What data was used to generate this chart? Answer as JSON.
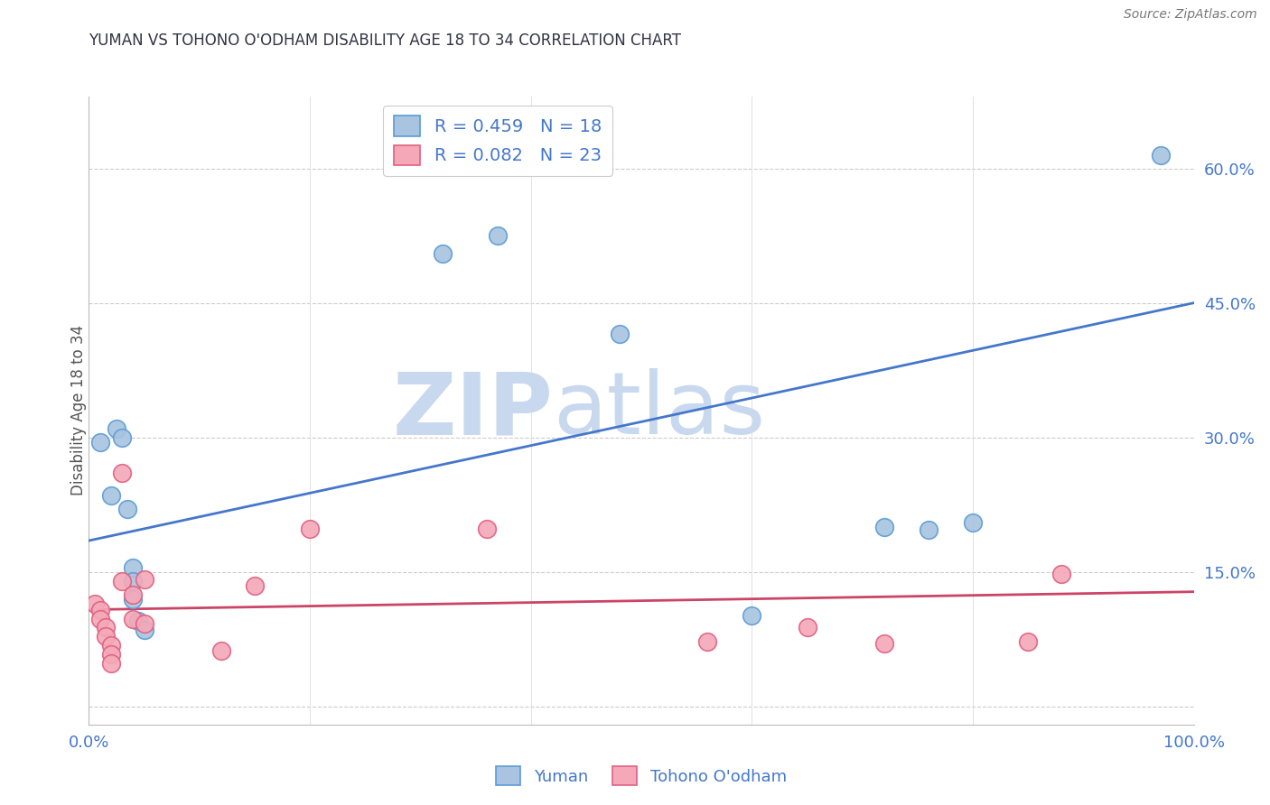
{
  "title": "YUMAN VS TOHONO O'ODHAM DISABILITY AGE 18 TO 34 CORRELATION CHART",
  "source": "Source: ZipAtlas.com",
  "ylabel": "Disability Age 18 to 34",
  "xlim": [
    0.0,
    1.0
  ],
  "ylim": [
    -0.02,
    0.68
  ],
  "yticks": [
    0.0,
    0.15,
    0.3,
    0.45,
    0.6
  ],
  "ytick_labels": [
    "",
    "15.0%",
    "30.0%",
    "45.0%",
    "60.0%"
  ],
  "legend_labels": [
    "Yuman",
    "Tohono O'odham"
  ],
  "blue_R": 0.459,
  "blue_N": 18,
  "pink_R": 0.082,
  "pink_N": 23,
  "blue_color": "#A8C4E0",
  "pink_color": "#F4A8B8",
  "blue_edge_color": "#5B9BD5",
  "pink_edge_color": "#E06080",
  "blue_line_color": "#4477CC",
  "pink_line_color": "#CC4466",
  "watermark": "ZIP",
  "watermark2": "atlas",
  "watermark_color": "#C8D8EE",
  "title_color": "#333344",
  "label_color": "#4477CC",
  "blue_dots": [
    [
      0.01,
      0.295
    ],
    [
      0.02,
      0.235
    ],
    [
      0.025,
      0.31
    ],
    [
      0.03,
      0.3
    ],
    [
      0.035,
      0.22
    ],
    [
      0.04,
      0.155
    ],
    [
      0.04,
      0.14
    ],
    [
      0.04,
      0.12
    ],
    [
      0.045,
      0.095
    ],
    [
      0.05,
      0.085
    ],
    [
      0.32,
      0.505
    ],
    [
      0.37,
      0.525
    ],
    [
      0.48,
      0.415
    ],
    [
      0.6,
      0.102
    ],
    [
      0.72,
      0.2
    ],
    [
      0.76,
      0.197
    ],
    [
      0.8,
      0.205
    ],
    [
      0.97,
      0.615
    ]
  ],
  "pink_dots": [
    [
      0.005,
      0.115
    ],
    [
      0.01,
      0.108
    ],
    [
      0.01,
      0.098
    ],
    [
      0.015,
      0.088
    ],
    [
      0.015,
      0.078
    ],
    [
      0.02,
      0.068
    ],
    [
      0.02,
      0.058
    ],
    [
      0.02,
      0.048
    ],
    [
      0.03,
      0.26
    ],
    [
      0.03,
      0.14
    ],
    [
      0.04,
      0.125
    ],
    [
      0.04,
      0.098
    ],
    [
      0.05,
      0.142
    ],
    [
      0.05,
      0.092
    ],
    [
      0.12,
      0.062
    ],
    [
      0.15,
      0.135
    ],
    [
      0.2,
      0.198
    ],
    [
      0.36,
      0.198
    ],
    [
      0.56,
      0.072
    ],
    [
      0.65,
      0.088
    ],
    [
      0.72,
      0.07
    ],
    [
      0.85,
      0.072
    ],
    [
      0.88,
      0.148
    ]
  ],
  "blue_line_y_start": 0.185,
  "blue_line_y_end": 0.45,
  "pink_line_y_start": 0.108,
  "pink_line_y_end": 0.128
}
